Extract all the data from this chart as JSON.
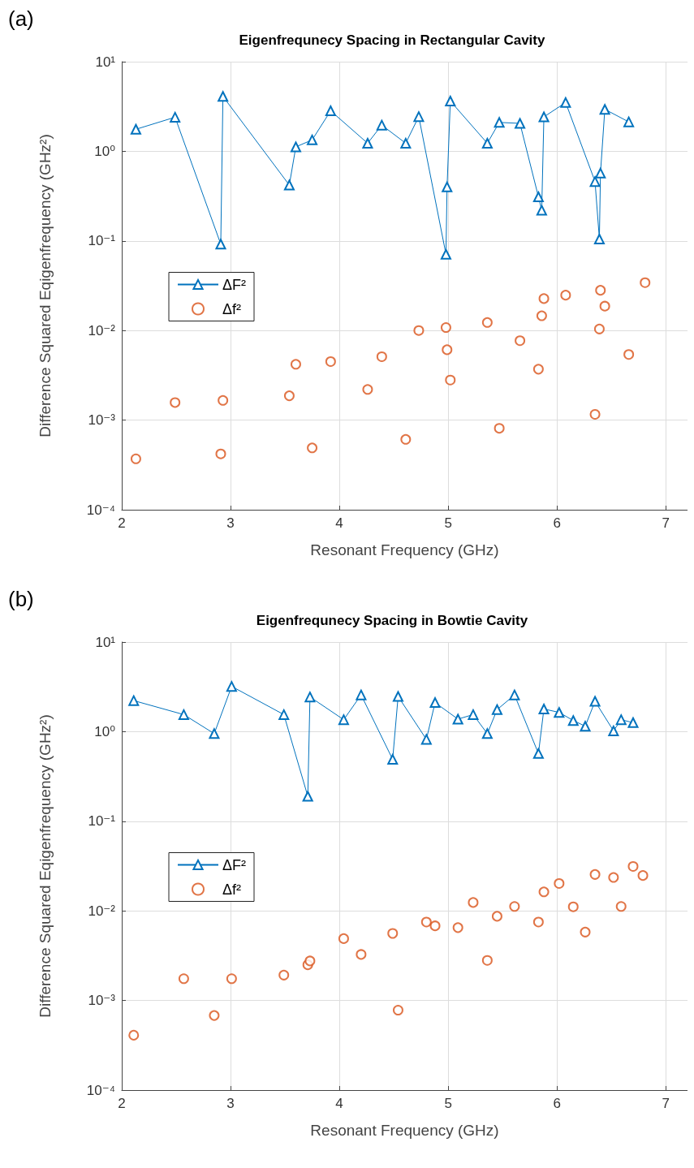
{
  "chart_data": [
    {
      "type": "line",
      "title": "Eigenfrequnecy Spacing in Rectangular Cavity",
      "xlabel": "Resonant Frequency (GHz)",
      "ylabel": "Difference Squared Eqigenfrequency (GHz²)",
      "annotations": [
        "(a)"
      ],
      "log": "y",
      "grid": true,
      "legend": "left",
      "xlim": [
        2,
        7.2
      ],
      "xticks": [
        2,
        3,
        4,
        5,
        6,
        7
      ],
      "ylim": [
        0.0001,
        10
      ],
      "yticks": [
        {
          "value": 0.0001,
          "label": "10⁻⁴"
        },
        {
          "value": 0.001,
          "label": "10⁻³"
        },
        {
          "value": 0.01,
          "label": "10⁻²"
        },
        {
          "value": 0.1,
          "label": "10⁻¹"
        },
        {
          "value": 1,
          "label": "10⁰"
        },
        {
          "value": 10,
          "label": "10¹"
        }
      ],
      "series": [
        {
          "name": "ΔF²",
          "type": "line",
          "marker": "triangle",
          "line_style": "solid",
          "color": "#0072bd",
          "x": [
            2.13,
            2.49,
            2.91,
            2.93,
            3.54,
            3.6,
            3.75,
            3.92,
            4.26,
            4.39,
            4.61,
            4.73,
            4.98,
            4.99,
            5.02,
            5.36,
            5.47,
            5.66,
            5.83,
            5.86,
            5.88,
            6.08,
            6.35,
            6.39,
            6.4,
            6.44,
            6.66
          ],
          "values": [
            1.76,
            2.4,
            0.092,
            4.1,
            0.42,
            1.12,
            1.34,
            2.83,
            1.23,
            1.96,
            1.23,
            2.44,
            0.071,
            0.4,
            3.64,
            1.23,
            2.1,
            2.05,
            0.31,
            0.22,
            2.42,
            3.5,
            0.46,
            0.105,
            0.57,
            2.94,
            2.13
          ]
        },
        {
          "name": "Δf²",
          "type": "scatter",
          "marker": "circle",
          "color": "#d95319",
          "x": [
            2.13,
            2.49,
            2.91,
            2.93,
            3.54,
            3.6,
            3.75,
            3.92,
            4.26,
            4.39,
            4.61,
            4.73,
            4.98,
            4.99,
            5.02,
            5.36,
            5.47,
            5.66,
            5.83,
            5.86,
            5.88,
            6.08,
            6.35,
            6.39,
            6.4,
            6.44,
            6.66,
            6.81
          ],
          "values": [
            0.00037,
            0.00157,
            0.00042,
            0.00166,
            0.00187,
            0.0042,
            0.00049,
            0.0045,
            0.0022,
            0.0051,
            0.00061,
            0.01,
            0.0108,
            0.0061,
            0.0028,
            0.0123,
            0.00081,
            0.0077,
            0.0037,
            0.0146,
            0.0227,
            0.0248,
            0.00116,
            0.0104,
            0.0281,
            0.0187,
            0.0054,
            0.0342
          ]
        }
      ]
    },
    {
      "type": "line",
      "title": "Eigenfrequnecy Spacing in Bowtie Cavity",
      "xlabel": "Resonant Frequency (GHz)",
      "ylabel": "Difference Squared Eqigenfrequency (GHz²)",
      "annotations": [
        "(b)"
      ],
      "log": "y",
      "grid": true,
      "legend": "left",
      "xlim": [
        2,
        7.2
      ],
      "xticks": [
        2,
        3,
        4,
        5,
        6,
        7
      ],
      "ylim": [
        0.0001,
        10
      ],
      "yticks": [
        {
          "value": 0.0001,
          "label": "10⁻⁴"
        },
        {
          "value": 0.001,
          "label": "10⁻³"
        },
        {
          "value": 0.01,
          "label": "10⁻²"
        },
        {
          "value": 0.1,
          "label": "10⁻¹"
        },
        {
          "value": 1,
          "label": "10⁰"
        },
        {
          "value": 10,
          "label": "10¹"
        }
      ],
      "series": [
        {
          "name": "ΔF²",
          "type": "line",
          "marker": "triangle",
          "line_style": "solid",
          "color": "#0072bd",
          "x": [
            2.11,
            2.57,
            2.85,
            3.01,
            3.49,
            3.71,
            3.73,
            4.04,
            4.2,
            4.49,
            4.54,
            4.8,
            4.88,
            5.09,
            5.23,
            5.36,
            5.45,
            5.61,
            5.83,
            5.88,
            6.02,
            6.15,
            6.26,
            6.35,
            6.52,
            6.59,
            6.7
          ],
          "values": [
            2.22,
            1.55,
            0.95,
            3.2,
            1.55,
            0.19,
            2.44,
            1.36,
            2.57,
            0.49,
            2.47,
            0.82,
            2.11,
            1.38,
            1.55,
            0.95,
            1.76,
            2.57,
            0.57,
            1.79,
            1.64,
            1.33,
            1.15,
            2.18,
            1.02,
            1.36,
            1.26
          ]
        },
        {
          "name": "Δf²",
          "type": "scatter",
          "marker": "circle",
          "color": "#d95319",
          "x": [
            2.11,
            2.57,
            2.85,
            3.01,
            3.49,
            3.71,
            3.73,
            4.04,
            4.2,
            4.49,
            4.54,
            4.8,
            4.88,
            5.09,
            5.23,
            5.36,
            5.45,
            5.61,
            5.83,
            5.88,
            6.02,
            6.15,
            6.26,
            6.35,
            6.52,
            6.59,
            6.7,
            6.79
          ],
          "values": [
            0.00041,
            0.00175,
            0.00068,
            0.00175,
            0.00192,
            0.0025,
            0.00276,
            0.0049,
            0.00326,
            0.0056,
            0.00078,
            0.0075,
            0.0068,
            0.0065,
            0.0124,
            0.0028,
            0.0087,
            0.0112,
            0.0075,
            0.0163,
            0.0202,
            0.0111,
            0.0058,
            0.0255,
            0.0236,
            0.0112,
            0.0313,
            0.0248
          ]
        }
      ]
    }
  ]
}
